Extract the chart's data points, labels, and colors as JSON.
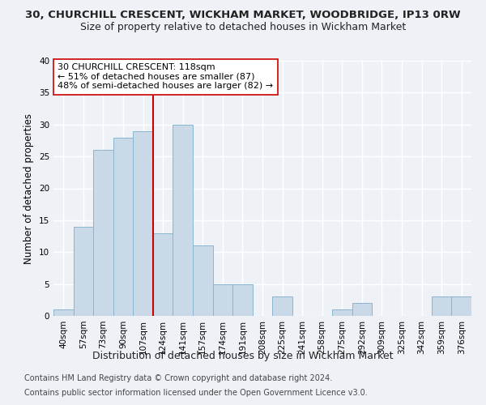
{
  "title_line1": "30, CHURCHILL CRESCENT, WICKHAM MARKET, WOODBRIDGE, IP13 0RW",
  "title_line2": "Size of property relative to detached houses in Wickham Market",
  "xlabel": "Distribution of detached houses by size in Wickham Market",
  "ylabel": "Number of detached properties",
  "categories": [
    "40sqm",
    "57sqm",
    "73sqm",
    "90sqm",
    "107sqm",
    "124sqm",
    "141sqm",
    "157sqm",
    "174sqm",
    "191sqm",
    "208sqm",
    "225sqm",
    "241sqm",
    "258sqm",
    "275sqm",
    "292sqm",
    "309sqm",
    "325sqm",
    "342sqm",
    "359sqm",
    "376sqm"
  ],
  "values": [
    1,
    14,
    26,
    28,
    29,
    13,
    30,
    11,
    5,
    5,
    0,
    3,
    0,
    0,
    1,
    2,
    0,
    0,
    0,
    3,
    3
  ],
  "bar_color": "#c9d9e8",
  "bar_edgecolor": "#8ab4d0",
  "vline_x_index": 4.5,
  "vline_color": "#cc0000",
  "annotation_text": "30 CHURCHILL CRESCENT: 118sqm\n← 51% of detached houses are smaller (87)\n48% of semi-detached houses are larger (82) →",
  "annotation_box_color": "white",
  "annotation_box_edgecolor": "#cc0000",
  "ylim": [
    0,
    40
  ],
  "yticks": [
    0,
    5,
    10,
    15,
    20,
    25,
    30,
    35,
    40
  ],
  "footer_line1": "Contains HM Land Registry data © Crown copyright and database right 2024.",
  "footer_line2": "Contains public sector information licensed under the Open Government Licence v3.0.",
  "bg_color": "#eef2f7",
  "grid_color": "#ffffff",
  "title1_fontsize": 9.5,
  "title2_fontsize": 9,
  "xlabel_fontsize": 9,
  "ylabel_fontsize": 8.5,
  "tick_fontsize": 7.5,
  "footer_fontsize": 7,
  "annotation_fontsize": 8
}
